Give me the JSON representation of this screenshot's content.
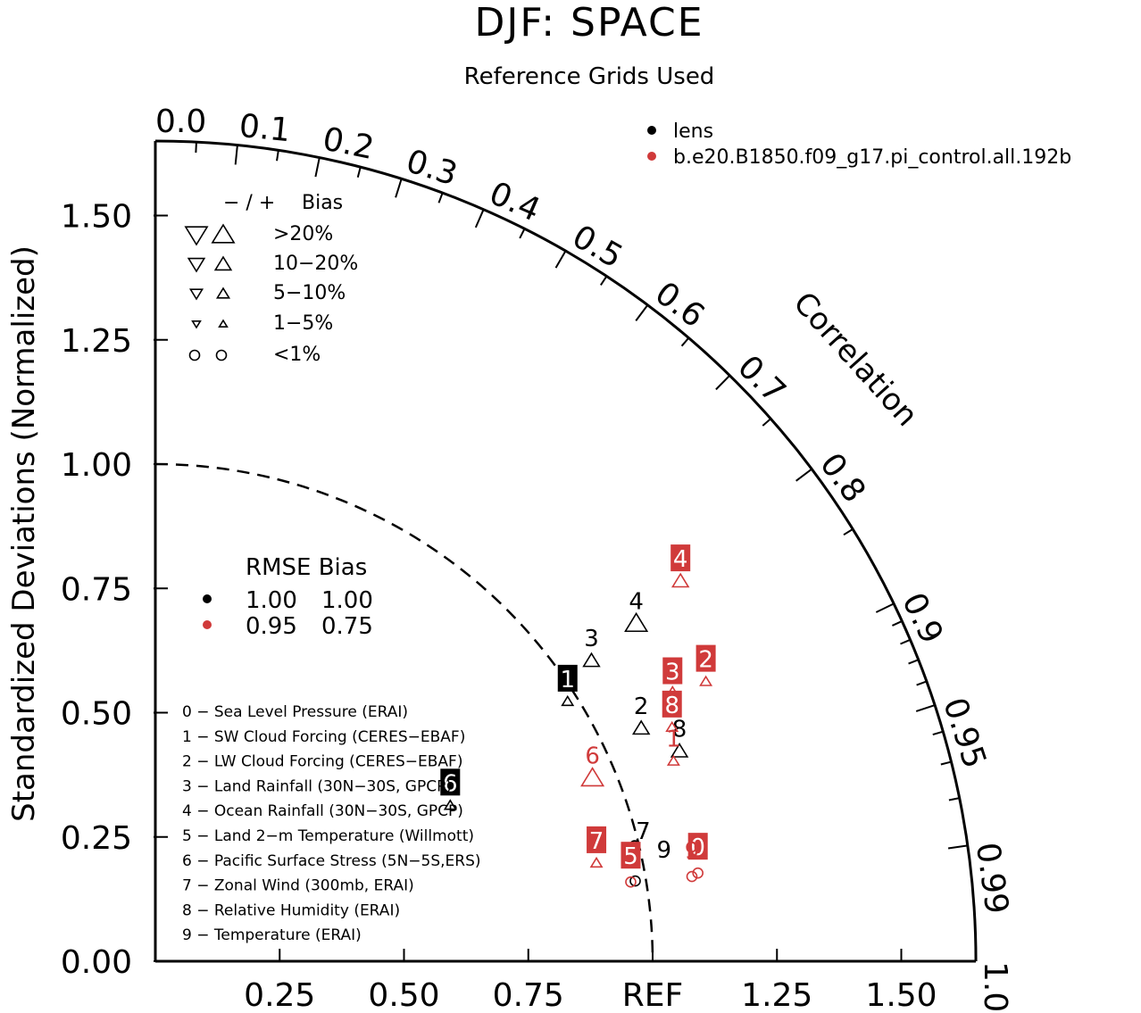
{
  "chart_data": {
    "type": "scatter",
    "title": "DJF: SPACE",
    "subtitle": "Reference Grids Used",
    "ylabel": "Standardized Deviations (Normalized)",
    "xlabel": "",
    "corr_axis_label": "Correlation",
    "ref_label": "REF",
    "std_max": 1.65,
    "ylim": [
      0,
      1.65
    ],
    "x_tick_labels": [
      "0.25",
      "0.50",
      "0.75",
      "REF",
      "1.25",
      "1.50"
    ],
    "x_tick_values": [
      0.25,
      0.5,
      0.75,
      1.0,
      1.25,
      1.5
    ],
    "y_tick_labels": [
      "0.00",
      "0.25",
      "0.50",
      "0.75",
      "1.00",
      "1.25",
      "1.50"
    ],
    "y_tick_values": [
      0,
      0.25,
      0.5,
      0.75,
      1.0,
      1.25,
      1.5
    ],
    "corr_labels": [
      {
        "value": 0.0,
        "text": "0.0"
      },
      {
        "value": 0.1,
        "text": "0.1"
      },
      {
        "value": 0.2,
        "text": "0.2"
      },
      {
        "value": 0.3,
        "text": "0.3"
      },
      {
        "value": 0.4,
        "text": "0.4"
      },
      {
        "value": 0.5,
        "text": "0.5"
      },
      {
        "value": 0.6,
        "text": "0.6"
      },
      {
        "value": 0.7,
        "text": "0.7"
      },
      {
        "value": 0.8,
        "text": "0.8"
      },
      {
        "value": 0.9,
        "text": "0.9"
      },
      {
        "value": 0.95,
        "text": "0.95"
      },
      {
        "value": 0.99,
        "text": "0.99"
      },
      {
        "value": 1.0,
        "text": "1.0"
      }
    ],
    "corr_major_ticks": [
      0.1,
      0.2,
      0.3,
      0.4,
      0.5,
      0.6,
      0.7,
      0.8,
      0.9,
      0.95,
      0.99
    ],
    "corr_minor_ticks": [
      0.05,
      0.15,
      0.25,
      0.35,
      0.45,
      0.55,
      0.65,
      0.75,
      0.85,
      0.91,
      0.92,
      0.93,
      0.94,
      0.96,
      0.97,
      0.98
    ],
    "colors": {
      "axis": "#000000",
      "lens": "#000000",
      "model": "#d03a3a"
    },
    "series": [
      {
        "name": "lens",
        "color": "#000000",
        "points": [
          {
            "id": "0",
            "x": 0.964,
            "y": 0.195,
            "marker": "none",
            "label_box": false
          },
          {
            "id": "1",
            "x": 0.829,
            "y": 0.537,
            "marker": "up-small",
            "label_box": true
          },
          {
            "id": "2",
            "x": 0.977,
            "y": 0.483,
            "marker": "up-medium",
            "label_box": false
          },
          {
            "id": "3",
            "x": 0.877,
            "y": 0.619,
            "marker": "up-medium",
            "label_box": false
          },
          {
            "id": "4",
            "x": 0.967,
            "y": 0.694,
            "marker": "up-large",
            "label_box": false
          },
          {
            "id": "5",
            "x": 0.965,
            "y": 0.183,
            "marker": "circle",
            "label_box": false
          },
          {
            "id": "6",
            "x": 0.593,
            "y": 0.328,
            "marker": "up-small",
            "label_box": true
          },
          {
            "id": "7",
            "x": 0.981,
            "y": 0.232,
            "marker": "none",
            "label_box": false
          },
          {
            "id": "8",
            "x": 1.054,
            "y": 0.437,
            "marker": "up-medium",
            "label_box": false
          },
          {
            "id": "9",
            "x": 1.023,
            "y": 0.194,
            "marker": "none",
            "label_box": false
          }
        ]
      },
      {
        "name": "b.e20.B1850.f09_g17.pi_control.all.192b",
        "color": "#d03a3a",
        "points": [
          {
            "id": "0",
            "x": 1.091,
            "y": 0.199,
            "marker": "circle",
            "label_box": true
          },
          {
            "id": "1",
            "x": 1.042,
            "y": 0.417,
            "marker": "up-small",
            "label_box": false
          },
          {
            "id": "2",
            "x": 1.107,
            "y": 0.577,
            "marker": "up-small",
            "label_box": true
          },
          {
            "id": "3",
            "x": 1.04,
            "y": 0.552,
            "marker": "up-medium",
            "label_box": true
          },
          {
            "id": "4",
            "x": 1.056,
            "y": 0.779,
            "marker": "up-medium",
            "label_box": true
          },
          {
            "id": "5",
            "x": 0.956,
            "y": 0.181,
            "marker": "circle",
            "label_box": true
          },
          {
            "id": "6",
            "x": 0.879,
            "y": 0.383,
            "marker": "up-large",
            "label_box": false
          },
          {
            "id": "7",
            "x": 0.887,
            "y": 0.212,
            "marker": "up-small",
            "label_box": true
          },
          {
            "id": "8",
            "x": 1.039,
            "y": 0.485,
            "marker": "up-small",
            "label_box": true
          },
          {
            "id": "9",
            "x": 1.079,
            "y": 0.192,
            "marker": "circle",
            "label_box": false
          }
        ]
      }
    ],
    "bias_legend": {
      "header_signs": "− / +",
      "header_bias": "Bias",
      "rows": [
        {
          "label": ">20%",
          "size": "large"
        },
        {
          "label": "10−20%",
          "size": "medium"
        },
        {
          "label": "5−10%",
          "size": "small"
        },
        {
          "label": "1−5%",
          "size": "tiny"
        },
        {
          "label": "<1%",
          "size": "circle"
        }
      ]
    },
    "rmse_legend": {
      "header": "RMSE Bias",
      "rows": [
        {
          "rmse": "1.00",
          "bias": "1.00",
          "color": "#000000"
        },
        {
          "rmse": "0.95",
          "bias": "0.75",
          "color": "#d03a3a"
        }
      ]
    },
    "variable_list": [
      "0 − Sea Level Pressure (ERAI)",
      "1 − SW Cloud Forcing (CERES−EBAF)",
      "2 − LW Cloud Forcing (CERES−EBAF)",
      "3 − Land Rainfall (30N−30S, GPCP)",
      "4 − Ocean Rainfall (30N−30S, GPCP)",
      "5 − Land 2−m Temperature (Willmott)",
      "6 − Pacific Surface Stress (5N−5S,ERS)",
      "7 − Zonal Wind (300mb, ERAI)",
      "8 − Relative Humidity (ERAI)",
      "9 − Temperature (ERAI)"
    ],
    "legend": [
      "lens",
      "b.e20.B1850.f09_g17.pi_control.all.192b"
    ],
    "legend_position": "top-right"
  }
}
